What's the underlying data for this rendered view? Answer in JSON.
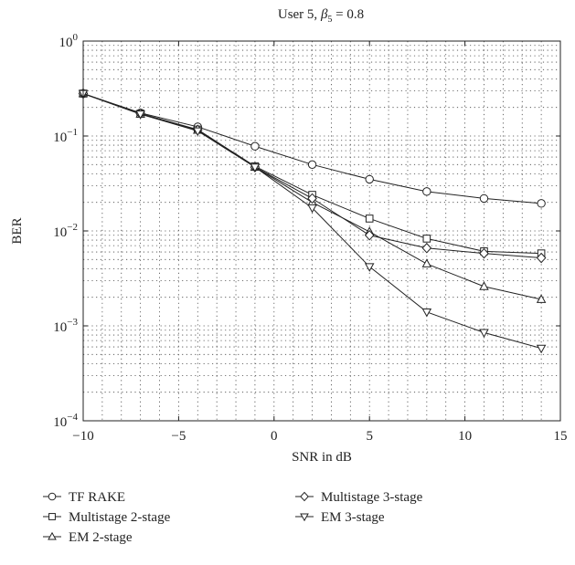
{
  "chart_data": {
    "type": "line",
    "title": "User 5, β5 = 0.8",
    "title_prefix": "User 5, ",
    "title_symbol": "β",
    "title_subscript": "5",
    "title_suffix": " = 0.8",
    "xlabel": "SNR in dB",
    "ylabel": "BER",
    "xlim": [
      -10,
      15
    ],
    "ylim": [
      0.0001,
      1
    ],
    "yscale": "log",
    "grid": true,
    "legend_position": "below",
    "x_ticks": [
      -10,
      -5,
      0,
      5,
      10,
      15
    ],
    "x_tick_labels": [
      "−10",
      "−5",
      "0",
      "5",
      "10",
      "15"
    ],
    "y_ticks": [
      {
        "value": 0.0001,
        "base": "10",
        "exp": "−4"
      },
      {
        "value": 0.001,
        "base": "10",
        "exp": "−3"
      },
      {
        "value": 0.01,
        "base": "10",
        "exp": "−2"
      },
      {
        "value": 0.1,
        "base": "10",
        "exp": "−1"
      },
      {
        "value": 1,
        "base": "10",
        "exp": "0"
      }
    ],
    "x": [
      -10,
      -7,
      -4,
      -1,
      2,
      5,
      8,
      11,
      14
    ],
    "series": [
      {
        "name": "TF RAKE",
        "marker": "circle",
        "values": [
          0.28,
          0.175,
          0.125,
          0.078,
          0.05,
          0.035,
          0.026,
          0.022,
          0.0195
        ]
      },
      {
        "name": "Multistage 2-stage",
        "marker": "square",
        "values": [
          0.28,
          0.172,
          0.117,
          0.048,
          0.024,
          0.0135,
          0.0083,
          0.0061,
          0.0058
        ]
      },
      {
        "name": "EM 2-stage",
        "marker": "triangle-up",
        "values": [
          0.28,
          0.17,
          0.115,
          0.047,
          0.02,
          0.0098,
          0.0045,
          0.0026,
          0.0019
        ]
      },
      {
        "name": "Multistage 3-stage",
        "marker": "diamond",
        "values": [
          0.28,
          0.172,
          0.116,
          0.047,
          0.022,
          0.009,
          0.0066,
          0.0058,
          0.0052
        ]
      },
      {
        "name": "EM 3-stage",
        "marker": "triangle-down",
        "values": [
          0.28,
          0.17,
          0.113,
          0.047,
          0.0175,
          0.0042,
          0.0014,
          0.00085,
          0.00058
        ]
      }
    ]
  }
}
